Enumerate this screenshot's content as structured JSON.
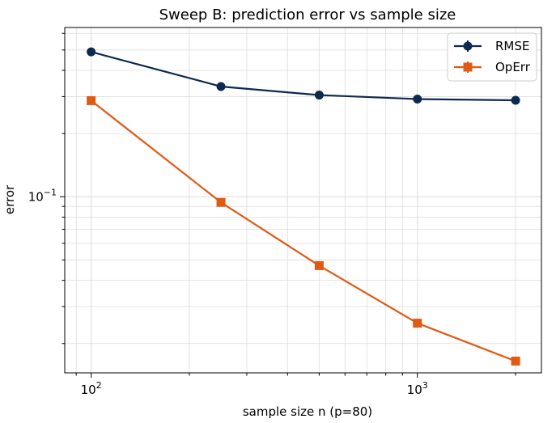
{
  "chart_data": {
    "type": "line",
    "title": "Sweep B: prediction error vs sample size",
    "xlabel": "sample size n (p=80)",
    "ylabel": "error",
    "xscale": "log",
    "yscale": "log",
    "xlim": [
      83,
      2400
    ],
    "ylim": [
      0.0145,
      0.64
    ],
    "x": [
      100,
      250,
      500,
      1000,
      2000
    ],
    "series": [
      {
        "name": "RMSE",
        "color": "#0c2a50",
        "marker": "circle",
        "values": [
          0.49,
          0.335,
          0.305,
          0.292,
          0.288
        ]
      },
      {
        "name": "OpErr",
        "color": "#e05a14",
        "marker": "square",
        "values": [
          0.287,
          0.094,
          0.047,
          0.025,
          0.0165
        ]
      }
    ],
    "x_ticks": [
      {
        "value": 100,
        "base": "10",
        "exp": "2"
      },
      {
        "value": 1000,
        "base": "10",
        "exp": "3"
      }
    ],
    "y_ticks": [
      {
        "value": 0.1,
        "base": "10",
        "exp": "−1"
      }
    ],
    "grid": true,
    "legend_position": "top-right"
  }
}
